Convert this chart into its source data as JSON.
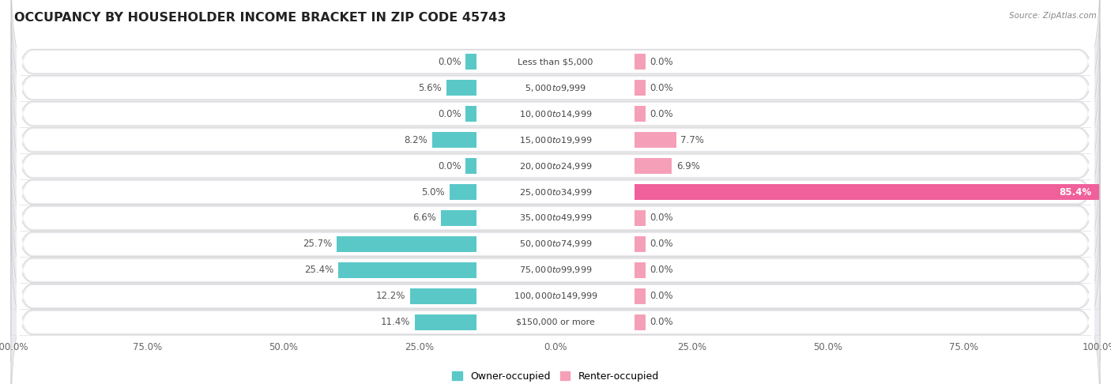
{
  "title": "OCCUPANCY BY HOUSEHOLDER INCOME BRACKET IN ZIP CODE 45743",
  "source": "Source: ZipAtlas.com",
  "categories": [
    "Less than $5,000",
    "$5,000 to $9,999",
    "$10,000 to $14,999",
    "$15,000 to $19,999",
    "$20,000 to $24,999",
    "$25,000 to $34,999",
    "$35,000 to $49,999",
    "$50,000 to $74,999",
    "$75,000 to $99,999",
    "$100,000 to $149,999",
    "$150,000 or more"
  ],
  "owner_pct": [
    0.0,
    5.6,
    0.0,
    8.2,
    0.0,
    5.0,
    6.6,
    25.7,
    25.4,
    12.2,
    11.4
  ],
  "renter_pct": [
    0.0,
    0.0,
    0.0,
    7.7,
    6.9,
    85.4,
    0.0,
    0.0,
    0.0,
    0.0,
    0.0
  ],
  "owner_color": "#5BC8C8",
  "renter_color": "#F5A0B8",
  "renter_color_bright": "#F0609A",
  "row_bg_color": "#EBEBF0",
  "label_bg_color": "#FFFFFF",
  "bar_height": 0.62,
  "title_fontsize": 11.5,
  "source_fontsize": 7.5,
  "tick_fontsize": 8.5,
  "legend_fontsize": 9,
  "category_fontsize": 8.0,
  "value_fontsize": 8.5,
  "xlim": 100.0,
  "min_stub": 2.0
}
